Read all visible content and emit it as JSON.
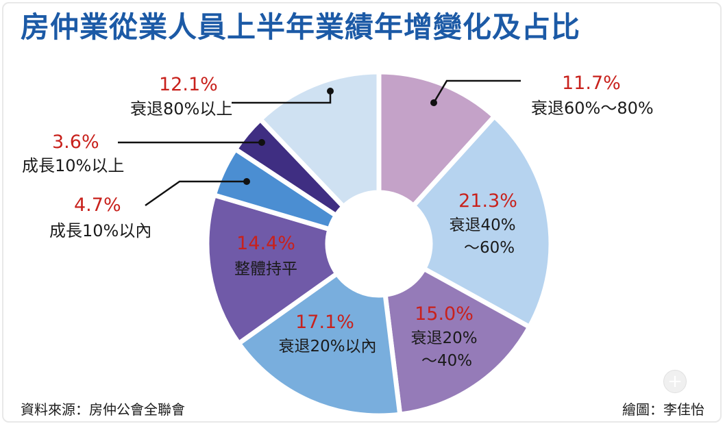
{
  "title": "房仲業從業人員上半年業績年增變化及占比",
  "source": "資料來源：房仲公會全聯會",
  "artist": "繪圖：李佳怡",
  "chart_data": {
    "type": "pie",
    "donut": true,
    "unit": "%",
    "slices": [
      {
        "label": "衰退60%～80%",
        "value": 11.7,
        "value_text": "11.7%",
        "color": "#c4a2c8",
        "line1": "衰退60%～80%",
        "line2": ""
      },
      {
        "label": "衰退40%～60%",
        "value": 21.3,
        "value_text": "21.3%",
        "color": "#b6d3ef",
        "line1": "衰退40%",
        "line2": "～60%"
      },
      {
        "label": "衰退20%～40%",
        "value": 15.0,
        "value_text": "15.0%",
        "color": "#957bb8",
        "line1": "衰退20%",
        "line2": "～40%"
      },
      {
        "label": "衰退20%以內",
        "value": 17.1,
        "value_text": "17.1%",
        "color": "#79aedd",
        "line1": "衰退20%以內",
        "line2": ""
      },
      {
        "label": "整體持平",
        "value": 14.4,
        "value_text": "14.4%",
        "color": "#705aa8",
        "line1": "整體持平",
        "line2": ""
      },
      {
        "label": "成長10%以內",
        "value": 4.7,
        "value_text": "4.7%",
        "color": "#4b8ed2",
        "line1": "成長10%以內",
        "line2": ""
      },
      {
        "label": "成長10%以上",
        "value": 3.6,
        "value_text": "3.6%",
        "color": "#3f2e82",
        "line1": "成長10%以上",
        "line2": ""
      },
      {
        "label": "衰退80%以上",
        "value": 12.1,
        "value_text": "12.1%",
        "color": "#cfe1f2",
        "line1": "衰退80%以上",
        "line2": ""
      }
    ]
  },
  "icons": {
    "zoom": "plus-icon"
  }
}
